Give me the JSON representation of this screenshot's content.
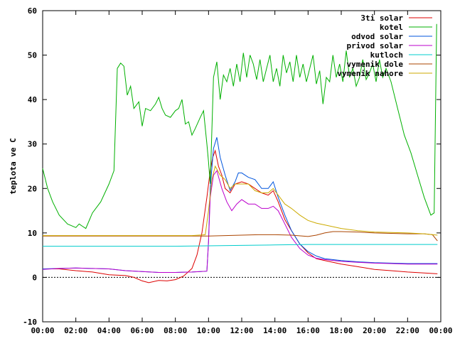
{
  "chart_data": {
    "type": "line",
    "title": "",
    "xlabel": "",
    "ylabel": "teplota ve C",
    "xlim": [
      0,
      24
    ],
    "ylim": [
      -10,
      60
    ],
    "grid": false,
    "legend_position": "top-right",
    "x_ticks": [
      {
        "value": 0,
        "label": "00:00"
      },
      {
        "value": 2,
        "label": "02:00"
      },
      {
        "value": 4,
        "label": "04:00"
      },
      {
        "value": 6,
        "label": "06:00"
      },
      {
        "value": 8,
        "label": "08:00"
      },
      {
        "value": 10,
        "label": "10:00"
      },
      {
        "value": 12,
        "label": "12:00"
      },
      {
        "value": 14,
        "label": "14:00"
      },
      {
        "value": 16,
        "label": "16:00"
      },
      {
        "value": 18,
        "label": "18:00"
      },
      {
        "value": 20,
        "label": "20:00"
      },
      {
        "value": 22,
        "label": "22:00"
      },
      {
        "value": 24,
        "label": "00:00"
      }
    ],
    "y_ticks": [
      {
        "value": -10,
        "label": "-10"
      },
      {
        "value": 0,
        "label": "0"
      },
      {
        "value": 10,
        "label": "10"
      },
      {
        "value": 20,
        "label": "20"
      },
      {
        "value": 30,
        "label": "30"
      },
      {
        "value": 40,
        "label": "40"
      },
      {
        "value": 50,
        "label": "50"
      },
      {
        "value": 60,
        "label": "60"
      }
    ],
    "series": [
      {
        "name": "3ti solar",
        "color": "#dd0000",
        "points": [
          [
            0,
            1.9
          ],
          [
            1,
            1.9
          ],
          [
            2,
            1.5
          ],
          [
            3,
            1.2
          ],
          [
            4,
            0.6
          ],
          [
            5,
            0.4
          ],
          [
            5.5,
            0
          ],
          [
            6,
            -0.8
          ],
          [
            6.4,
            -1.2
          ],
          [
            7,
            -0.7
          ],
          [
            7.5,
            -0.8
          ],
          [
            8,
            -0.5
          ],
          [
            8.5,
            0.3
          ],
          [
            9,
            2
          ],
          [
            9.3,
            5
          ],
          [
            9.6,
            10
          ],
          [
            9.9,
            18
          ],
          [
            10.1,
            24
          ],
          [
            10.25,
            27
          ],
          [
            10.4,
            28.5
          ],
          [
            10.6,
            25
          ],
          [
            10.8,
            23
          ],
          [
            11,
            20
          ],
          [
            11.3,
            19
          ],
          [
            11.6,
            21
          ],
          [
            12,
            21.5
          ],
          [
            12.4,
            21
          ],
          [
            12.8,
            20
          ],
          [
            13.2,
            19
          ],
          [
            13.6,
            18.5
          ],
          [
            13.9,
            19.5
          ],
          [
            14.2,
            17
          ],
          [
            14.6,
            13
          ],
          [
            15,
            10.5
          ],
          [
            15.5,
            7.5
          ],
          [
            16,
            5.5
          ],
          [
            16.5,
            4.2
          ],
          [
            17,
            3.8
          ],
          [
            18,
            3
          ],
          [
            19,
            2.4
          ],
          [
            20,
            1.8
          ],
          [
            21,
            1.5
          ],
          [
            22,
            1.2
          ],
          [
            23,
            1
          ],
          [
            23.8,
            0.8
          ]
        ]
      },
      {
        "name": "kotel",
        "color": "#00b000",
        "points": [
          [
            0,
            24.5
          ],
          [
            0.3,
            20
          ],
          [
            0.6,
            17
          ],
          [
            1,
            14
          ],
          [
            1.5,
            12
          ],
          [
            2,
            11.2
          ],
          [
            2.2,
            12
          ],
          [
            2.4,
            11.5
          ],
          [
            2.6,
            11
          ],
          [
            3,
            14.5
          ],
          [
            3.5,
            17
          ],
          [
            4,
            21
          ],
          [
            4.3,
            24
          ],
          [
            4.5,
            47
          ],
          [
            4.7,
            48.2
          ],
          [
            4.9,
            47.5
          ],
          [
            5.1,
            41
          ],
          [
            5.3,
            43
          ],
          [
            5.5,
            38
          ],
          [
            5.8,
            39.5
          ],
          [
            6,
            34
          ],
          [
            6.2,
            38
          ],
          [
            6.5,
            37.5
          ],
          [
            6.8,
            39
          ],
          [
            7,
            40.5
          ],
          [
            7.2,
            38
          ],
          [
            7.4,
            36.5
          ],
          [
            7.7,
            36
          ],
          [
            8,
            37.5
          ],
          [
            8.2,
            38
          ],
          [
            8.4,
            40
          ],
          [
            8.6,
            34.5
          ],
          [
            8.8,
            35
          ],
          [
            9,
            32
          ],
          [
            9.2,
            33.5
          ],
          [
            9.5,
            36
          ],
          [
            9.7,
            37.5
          ],
          [
            9.9,
            30
          ],
          [
            10,
            26
          ],
          [
            10.1,
            21
          ],
          [
            10.3,
            45
          ],
          [
            10.5,
            48.5
          ],
          [
            10.7,
            40
          ],
          [
            10.9,
            45.5
          ],
          [
            11.1,
            44
          ],
          [
            11.3,
            47
          ],
          [
            11.5,
            43
          ],
          [
            11.7,
            48
          ],
          [
            11.9,
            44
          ],
          [
            12.1,
            50.5
          ],
          [
            12.3,
            45
          ],
          [
            12.5,
            50
          ],
          [
            12.7,
            48
          ],
          [
            12.9,
            44.5
          ],
          [
            13.1,
            49
          ],
          [
            13.3,
            44
          ],
          [
            13.5,
            47
          ],
          [
            13.7,
            50
          ],
          [
            13.9,
            44
          ],
          [
            14.1,
            47
          ],
          [
            14.3,
            43
          ],
          [
            14.5,
            50
          ],
          [
            14.7,
            46
          ],
          [
            14.9,
            48.5
          ],
          [
            15.1,
            44
          ],
          [
            15.3,
            50
          ],
          [
            15.5,
            45
          ],
          [
            15.7,
            48
          ],
          [
            15.9,
            44
          ],
          [
            16.1,
            47
          ],
          [
            16.3,
            50
          ],
          [
            16.5,
            43.5
          ],
          [
            16.7,
            46.5
          ],
          [
            16.9,
            39
          ],
          [
            17.1,
            45
          ],
          [
            17.3,
            44
          ],
          [
            17.5,
            50
          ],
          [
            17.7,
            45
          ],
          [
            17.9,
            48
          ],
          [
            18.1,
            44
          ],
          [
            18.3,
            51
          ],
          [
            18.5,
            45
          ],
          [
            18.7,
            47
          ],
          [
            18.9,
            43
          ],
          [
            19.1,
            45
          ],
          [
            19.3,
            49
          ],
          [
            19.5,
            44.5
          ],
          [
            19.7,
            46
          ],
          [
            19.9,
            48
          ],
          [
            20.1,
            44
          ],
          [
            20.3,
            49
          ],
          [
            20.5,
            45
          ],
          [
            20.7,
            47
          ],
          [
            21,
            44
          ],
          [
            21.4,
            38
          ],
          [
            21.8,
            32
          ],
          [
            22.2,
            28
          ],
          [
            22.6,
            23
          ],
          [
            23,
            18
          ],
          [
            23.4,
            14
          ],
          [
            23.6,
            14.5
          ],
          [
            23.75,
            57
          ]
        ]
      },
      {
        "name": "odvod solar",
        "color": "#0055dd",
        "points": [
          [
            0,
            1.9
          ],
          [
            1,
            2
          ],
          [
            2,
            2.1
          ],
          [
            3,
            2
          ],
          [
            4,
            1.9
          ],
          [
            5,
            1.5
          ],
          [
            6,
            1.3
          ],
          [
            7,
            1.1
          ],
          [
            8,
            1.1
          ],
          [
            9,
            1.2
          ],
          [
            9.5,
            1.3
          ],
          [
            9.9,
            1.4
          ],
          [
            10,
            8
          ],
          [
            10.1,
            20
          ],
          [
            10.3,
            29
          ],
          [
            10.5,
            31.5
          ],
          [
            10.7,
            27
          ],
          [
            11,
            23
          ],
          [
            11.3,
            19.5
          ],
          [
            11.6,
            21.5
          ],
          [
            11.8,
            23.5
          ],
          [
            12,
            23.5
          ],
          [
            12.4,
            22.5
          ],
          [
            12.8,
            22
          ],
          [
            13.2,
            20
          ],
          [
            13.6,
            20
          ],
          [
            13.9,
            21.5
          ],
          [
            14.2,
            18
          ],
          [
            14.6,
            14
          ],
          [
            15,
            10.5
          ],
          [
            15.5,
            7.5
          ],
          [
            16,
            5.8
          ],
          [
            16.5,
            4.8
          ],
          [
            17,
            4.2
          ],
          [
            18,
            3.8
          ],
          [
            19,
            3.5
          ],
          [
            20,
            3.3
          ],
          [
            21,
            3.2
          ],
          [
            22,
            3.1
          ],
          [
            23,
            3.1
          ],
          [
            23.8,
            3.1
          ]
        ]
      },
      {
        "name": "privod solar",
        "color": "#bb00cc",
        "points": [
          [
            0,
            1.8
          ],
          [
            1,
            2
          ],
          [
            2,
            2.1
          ],
          [
            3,
            2
          ],
          [
            4,
            1.9
          ],
          [
            5,
            1.5
          ],
          [
            6,
            1.3
          ],
          [
            7,
            1.1
          ],
          [
            8,
            1.1
          ],
          [
            9,
            1.2
          ],
          [
            9.5,
            1.3
          ],
          [
            9.9,
            1.4
          ],
          [
            10,
            8
          ],
          [
            10.1,
            18
          ],
          [
            10.3,
            23
          ],
          [
            10.5,
            24
          ],
          [
            10.8,
            20
          ],
          [
            11.1,
            17
          ],
          [
            11.4,
            15
          ],
          [
            11.7,
            16.5
          ],
          [
            12,
            17.5
          ],
          [
            12.4,
            16.5
          ],
          [
            12.8,
            16.5
          ],
          [
            13.2,
            15.5
          ],
          [
            13.6,
            15.5
          ],
          [
            13.9,
            16
          ],
          [
            14.2,
            15
          ],
          [
            14.6,
            12
          ],
          [
            15,
            9
          ],
          [
            15.5,
            6.5
          ],
          [
            16,
            5
          ],
          [
            16.5,
            4.3
          ],
          [
            17,
            4
          ],
          [
            18,
            3.6
          ],
          [
            19,
            3.4
          ],
          [
            20,
            3.2
          ],
          [
            21,
            3.1
          ],
          [
            22,
            3
          ],
          [
            23,
            3
          ],
          [
            23.8,
            3
          ]
        ]
      },
      {
        "name": "kutloch",
        "color": "#00cccc",
        "points": [
          [
            0,
            7
          ],
          [
            2,
            7
          ],
          [
            4,
            7
          ],
          [
            6,
            7
          ],
          [
            8,
            7
          ],
          [
            10,
            7.1
          ],
          [
            12,
            7.2
          ],
          [
            14,
            7.3
          ],
          [
            16,
            7.4
          ],
          [
            18,
            7.4
          ],
          [
            20,
            7.4
          ],
          [
            22,
            7.4
          ],
          [
            23.8,
            7.4
          ]
        ]
      },
      {
        "name": "vymenik dole",
        "color": "#aa4400",
        "points": [
          [
            0,
            9.3
          ],
          [
            2,
            9.3
          ],
          [
            4,
            9.3
          ],
          [
            6,
            9.3
          ],
          [
            8,
            9.3
          ],
          [
            10,
            9.3
          ],
          [
            11,
            9.4
          ],
          [
            12,
            9.5
          ],
          [
            13,
            9.6
          ],
          [
            14,
            9.6
          ],
          [
            15,
            9.5
          ],
          [
            16,
            9.2
          ],
          [
            16.5,
            9.5
          ],
          [
            17,
            10
          ],
          [
            17.5,
            10.3
          ],
          [
            18,
            10.3
          ],
          [
            19,
            10.2
          ],
          [
            20,
            10
          ],
          [
            21,
            9.9
          ],
          [
            22,
            9.8
          ],
          [
            23,
            9.8
          ],
          [
            23.5,
            9.6
          ],
          [
            23.8,
            8.2
          ]
        ]
      },
      {
        "name": "vymenik nahore",
        "color": "#ccaa00",
        "points": [
          [
            0,
            9.4
          ],
          [
            2,
            9.4
          ],
          [
            4,
            9.4
          ],
          [
            6,
            9.4
          ],
          [
            8,
            9.4
          ],
          [
            9,
            9.4
          ],
          [
            9.8,
            9.6
          ],
          [
            10,
            15
          ],
          [
            10.2,
            22
          ],
          [
            10.4,
            25
          ],
          [
            10.7,
            23
          ],
          [
            11,
            22
          ],
          [
            11.3,
            20
          ],
          [
            11.6,
            21
          ],
          [
            12,
            21
          ],
          [
            12.4,
            21
          ],
          [
            12.8,
            19.5
          ],
          [
            13.2,
            19
          ],
          [
            13.6,
            19
          ],
          [
            13.9,
            20
          ],
          [
            14.2,
            18.5
          ],
          [
            14.6,
            16.5
          ],
          [
            15,
            15.5
          ],
          [
            15.5,
            14
          ],
          [
            16,
            12.8
          ],
          [
            16.5,
            12.2
          ],
          [
            17,
            11.8
          ],
          [
            18,
            11
          ],
          [
            19,
            10.5
          ],
          [
            20,
            10.2
          ],
          [
            21,
            10.1
          ],
          [
            22,
            10
          ],
          [
            23,
            9.8
          ],
          [
            23.8,
            9.5
          ]
        ]
      }
    ]
  }
}
